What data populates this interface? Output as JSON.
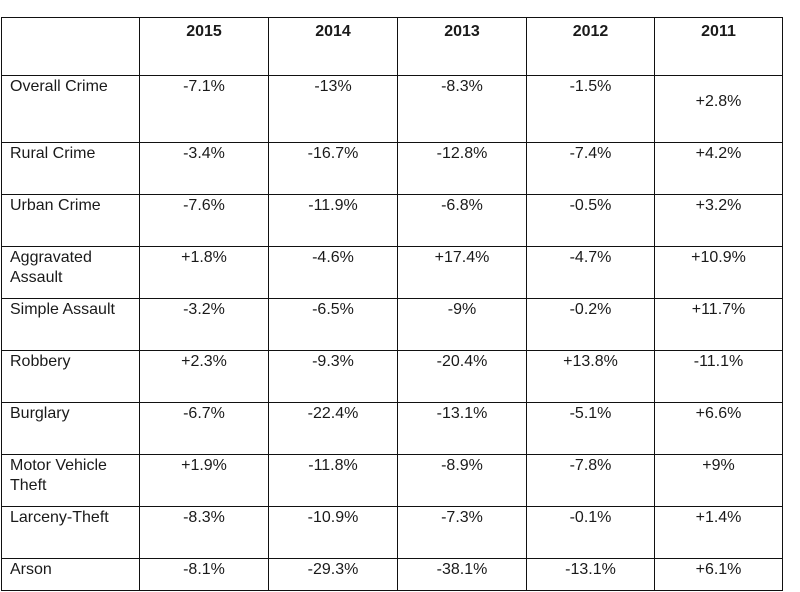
{
  "table": {
    "corner": "",
    "years": [
      "2015",
      "2014",
      "2013",
      "2012",
      "2011"
    ],
    "rows": [
      {
        "label": "Overall Crime",
        "values": [
          "-7.1%",
          "-13%",
          "-8.3%",
          "-1.5%",
          "+2.8%"
        ]
      },
      {
        "label": "Rural Crime",
        "values": [
          "-3.4%",
          "-16.7%",
          "-12.8%",
          "-7.4%",
          "+4.2%"
        ]
      },
      {
        "label": "Urban Crime",
        "values": [
          "-7.6%",
          "-11.9%",
          "-6.8%",
          "-0.5%",
          "+3.2%"
        ]
      },
      {
        "label": "Aggravated Assault",
        "values": [
          "+1.8%",
          "-4.6%",
          "+17.4%",
          "-4.7%",
          "+10.9%"
        ]
      },
      {
        "label": "Simple Assault",
        "values": [
          "-3.2%",
          "-6.5%",
          "-9%",
          "-0.2%",
          "+11.7%"
        ]
      },
      {
        "label": "Robbery",
        "values": [
          "+2.3%",
          "-9.3%",
          "-20.4%",
          "+13.8%",
          "-11.1%"
        ]
      },
      {
        "label": "Burglary",
        "values": [
          "-6.7%",
          "-22.4%",
          "-13.1%",
          "-5.1%",
          "+6.6%"
        ]
      },
      {
        "label": "Motor Vehicle Theft",
        "values": [
          "+1.9%",
          "-11.8%",
          "-8.9%",
          "-7.8%",
          "+9%"
        ]
      },
      {
        "label": "Larceny-Theft",
        "values": [
          "-8.3%",
          "-10.9%",
          "-7.3%",
          "-0.1%",
          "+1.4%"
        ]
      },
      {
        "label": "Arson",
        "values": [
          "-8.1%",
          "-29.3%",
          "-38.1%",
          "-13.1%",
          "+6.1%"
        ]
      }
    ]
  }
}
